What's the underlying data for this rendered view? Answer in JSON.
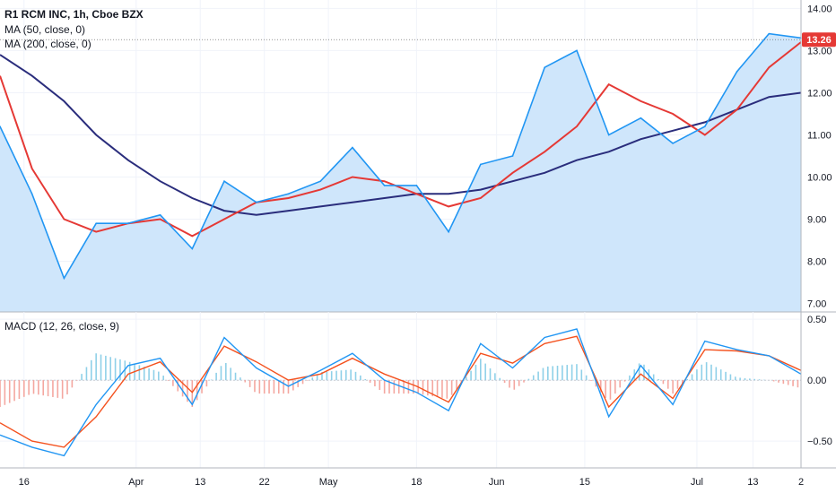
{
  "legend": {
    "title": "R1 RCM INC, 1h, Cboe BZX",
    "ma50": "MA (50, close, 0)",
    "ma200": "MA (200, close, 0)",
    "macd": "MACD (12, 26, close, 9)"
  },
  "price_badge": "13.26",
  "colors": {
    "price": "#2196f3",
    "price_fill": "#cfe6fb",
    "ma50": "#e53935",
    "ma200": "#2a2d7c",
    "macd": "#2196f3",
    "signal": "#f4511e",
    "hist_pos": "#8fd0e8",
    "hist_neg": "#f4a7a0",
    "badge": "#e53935"
  },
  "chart_data": [
    {
      "type": "line",
      "title": "R1 RCM INC, 1h, Cboe BZX",
      "ylim": [
        6.8,
        14.2
      ],
      "y_ticks": [
        "14.00",
        "13.00",
        "12.00",
        "11.00",
        "10.00",
        "9.00",
        "8.00",
        "7.00"
      ],
      "last_price": 13.26,
      "x": [
        0,
        4,
        8,
        12,
        16,
        20,
        24,
        28,
        32,
        36,
        40,
        44,
        48,
        52,
        56,
        60,
        64,
        68,
        72,
        76,
        80,
        84,
        88,
        92,
        96,
        100
      ],
      "series": [
        {
          "name": "R1 RCM INC",
          "values": [
            11.2,
            9.6,
            7.6,
            8.9,
            8.9,
            9.1,
            8.3,
            9.9,
            9.4,
            9.6,
            9.9,
            10.7,
            9.8,
            9.8,
            8.7,
            10.3,
            10.5,
            12.6,
            13.0,
            11.0,
            11.4,
            10.8,
            11.2,
            12.5,
            13.4,
            13.3
          ]
        },
        {
          "name": "MA (50, close, 0)",
          "values": [
            12.4,
            10.2,
            9.0,
            8.7,
            8.9,
            9.0,
            8.6,
            9.0,
            9.4,
            9.5,
            9.7,
            10.0,
            9.9,
            9.6,
            9.3,
            9.5,
            10.1,
            10.6,
            11.2,
            12.2,
            11.8,
            11.5,
            11.0,
            11.6,
            12.6,
            13.2
          ]
        },
        {
          "name": "MA (200, close, 0)",
          "values": [
            12.9,
            12.4,
            11.8,
            11.0,
            10.4,
            9.9,
            9.5,
            9.2,
            9.1,
            9.2,
            9.3,
            9.4,
            9.5,
            9.6,
            9.6,
            9.7,
            9.9,
            10.1,
            10.4,
            10.6,
            10.9,
            11.1,
            11.3,
            11.6,
            11.9,
            12.0
          ]
        }
      ]
    },
    {
      "type": "line",
      "title": "MACD (12, 26, close, 9)",
      "ylim": [
        -0.72,
        0.56
      ],
      "y_ticks": [
        "0.50",
        "0.00",
        "−0.50"
      ],
      "x": [
        0,
        4,
        8,
        12,
        16,
        20,
        24,
        28,
        32,
        36,
        40,
        44,
        48,
        52,
        56,
        60,
        64,
        68,
        72,
        76,
        80,
        84,
        88,
        92,
        96,
        100
      ],
      "series": [
        {
          "name": "MACD",
          "values": [
            -0.45,
            -0.55,
            -0.62,
            -0.2,
            0.12,
            0.18,
            -0.2,
            0.35,
            0.1,
            -0.05,
            0.08,
            0.22,
            0.0,
            -0.1,
            -0.25,
            0.3,
            0.1,
            0.35,
            0.42,
            -0.3,
            0.12,
            -0.2,
            0.32,
            0.25,
            0.2,
            0.05
          ]
        },
        {
          "name": "Signal",
          "values": [
            -0.35,
            -0.5,
            -0.55,
            -0.3,
            0.05,
            0.15,
            -0.1,
            0.28,
            0.15,
            0.0,
            0.05,
            0.18,
            0.05,
            -0.05,
            -0.18,
            0.22,
            0.14,
            0.3,
            0.36,
            -0.22,
            0.05,
            -0.15,
            0.25,
            0.24,
            0.2,
            0.08
          ]
        }
      ]
    }
  ],
  "x_axis": {
    "ticks": [
      {
        "label": "16",
        "x": 3
      },
      {
        "label": "Apr",
        "x": 17
      },
      {
        "label": "13",
        "x": 25
      },
      {
        "label": "22",
        "x": 33
      },
      {
        "label": "May",
        "x": 41
      },
      {
        "label": "18",
        "x": 52
      },
      {
        "label": "Jun",
        "x": 62
      },
      {
        "label": "15",
        "x": 73
      },
      {
        "label": "Jul",
        "x": 87
      },
      {
        "label": "13",
        "x": 94
      },
      {
        "label": "2",
        "x": 100
      }
    ]
  }
}
